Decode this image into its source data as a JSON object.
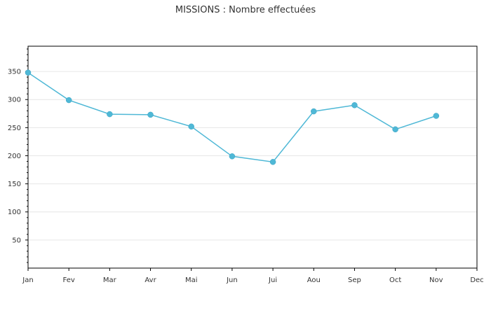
{
  "chart_data": {
    "type": "line",
    "title": "MISSIONS : Nombre effectuées",
    "xlabel": "",
    "ylabel": "",
    "categories": [
      "Jan",
      "Fev",
      "Mar",
      "Avr",
      "Mai",
      "Jun",
      "Jui",
      "Aou",
      "Sep",
      "Oct",
      "Nov",
      "Dec"
    ],
    "yticks": [
      50,
      100,
      150,
      200,
      250,
      300,
      350
    ],
    "ylim": [
      0,
      395
    ],
    "grid": true,
    "series": [
      {
        "values": [
          348,
          299,
          274,
          273,
          252,
          199,
          189,
          279,
          290,
          247,
          271,
          null
        ],
        "color": "#4fb8d6"
      }
    ]
  }
}
